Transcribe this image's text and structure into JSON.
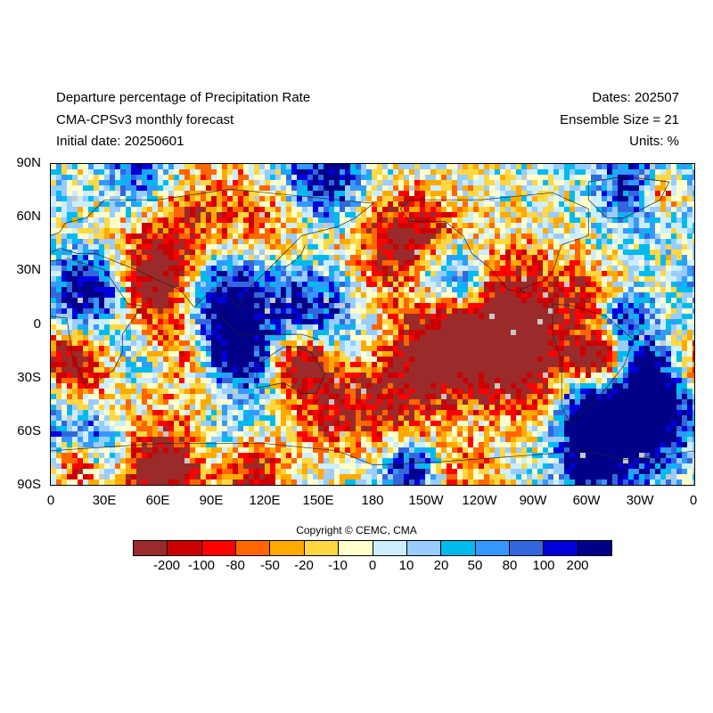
{
  "header": {
    "title": "Departure percentage of Precipitation Rate",
    "model": "CMA-CPSv3 monthly forecast",
    "initial_date": "Initial date: 20250601",
    "dates": "Dates: 202507",
    "ensemble": "Ensemble Size = 21",
    "units": "Units: %"
  },
  "map": {
    "projection": "cylindrical equidistant",
    "lat_labels": [
      "90N",
      "60N",
      "30N",
      "0",
      "30S",
      "60S",
      "90S"
    ],
    "lon_labels": [
      "0",
      "30E",
      "60E",
      "90E",
      "120E",
      "150E",
      "180",
      "150W",
      "120W",
      "90W",
      "60W",
      "30W",
      "0"
    ],
    "icon": "world-map-icon"
  },
  "copyright": "Copyright © CEMC, CMA",
  "colorbar": {
    "labels": [
      "-200",
      "-100",
      "-80",
      "-50",
      "-20",
      "-10",
      "0",
      "10",
      "20",
      "50",
      "80",
      "100",
      "200"
    ],
    "colors": [
      "#9b2a2a",
      "#cc0000",
      "#ff0000",
      "#ff6600",
      "#ffaa00",
      "#ffd740",
      "#ffffcc",
      "#cceeff",
      "#99ccff",
      "#00bbee",
      "#3399ff",
      "#3366dd",
      "#0000dd",
      "#000088"
    ]
  }
}
